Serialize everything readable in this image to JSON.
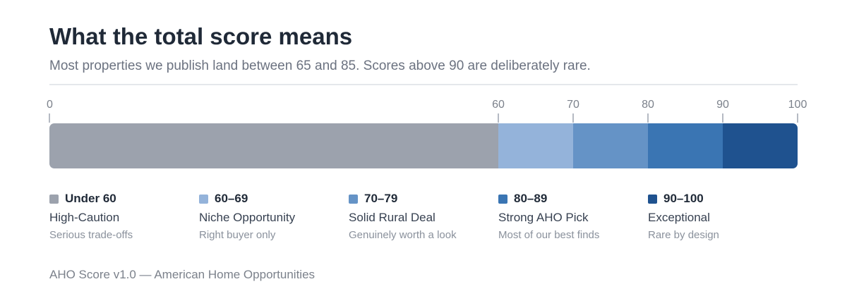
{
  "header": {
    "title": "What the total score means",
    "subtitle": "Most properties we publish land between 65 and 85. Scores above 90 are deliberately rare."
  },
  "chart_data": {
    "type": "bar",
    "orientation": "horizontal-stacked-scale",
    "xlim": [
      0,
      100
    ],
    "ticks": [
      0,
      60,
      70,
      80,
      90,
      100
    ],
    "segments": [
      {
        "start": 0,
        "end": 60,
        "range": "Under 60",
        "label": "High-Caution",
        "description": "Serious trade-offs",
        "color": "#9ca2ad"
      },
      {
        "start": 60,
        "end": 70,
        "range": "60–69",
        "label": "Niche Opportunity",
        "description": "Right buyer only",
        "color": "#94b3da"
      },
      {
        "start": 70,
        "end": 80,
        "range": "70–79",
        "label": "Solid Rural Deal",
        "description": "Genuinely worth a look",
        "color": "#6593c6"
      },
      {
        "start": 80,
        "end": 90,
        "range": "80–89",
        "label": "Strong AHO Pick",
        "description": "Most of our best finds",
        "color": "#3a75b3"
      },
      {
        "start": 90,
        "end": 100,
        "range": "90–100",
        "label": "Exceptional",
        "description": "Rare by design",
        "color": "#1f528f"
      }
    ]
  },
  "footer": {
    "text": "AHO Score v1.0 — American Home Opportunities"
  }
}
